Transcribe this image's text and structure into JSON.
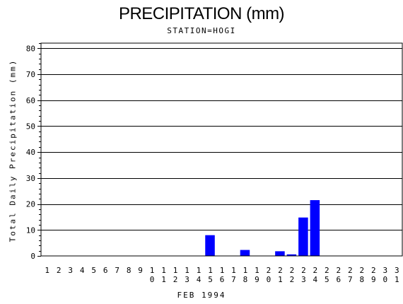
{
  "chart_data": {
    "type": "bar",
    "title": "PRECIPITATION (mm)",
    "subtitle": "STATION=HOGI",
    "xlabel": "FEB 1994",
    "ylabel": "Total Daily Precipitation (mm)",
    "categories": [
      "1",
      "2",
      "3",
      "4",
      "5",
      "6",
      "7",
      "8",
      "9",
      "10",
      "11",
      "12",
      "13",
      "14",
      "15",
      "16",
      "17",
      "18",
      "19",
      "20",
      "21",
      "22",
      "23",
      "24",
      "25",
      "26",
      "27",
      "28",
      "29",
      "30",
      "31"
    ],
    "values": [
      0,
      0,
      0,
      0,
      0,
      0,
      0,
      0,
      0,
      0,
      0,
      0,
      0,
      0,
      8,
      0,
      0,
      2.3,
      0,
      0,
      1.8,
      0.6,
      14.8,
      21.5,
      0,
      0,
      0,
      0,
      0,
      0,
      0
    ],
    "ylim": [
      0,
      82
    ],
    "yticks": [
      0,
      10,
      20,
      30,
      40,
      50,
      60,
      70,
      80
    ],
    "grid": true,
    "bar_color": "#0000ff"
  }
}
